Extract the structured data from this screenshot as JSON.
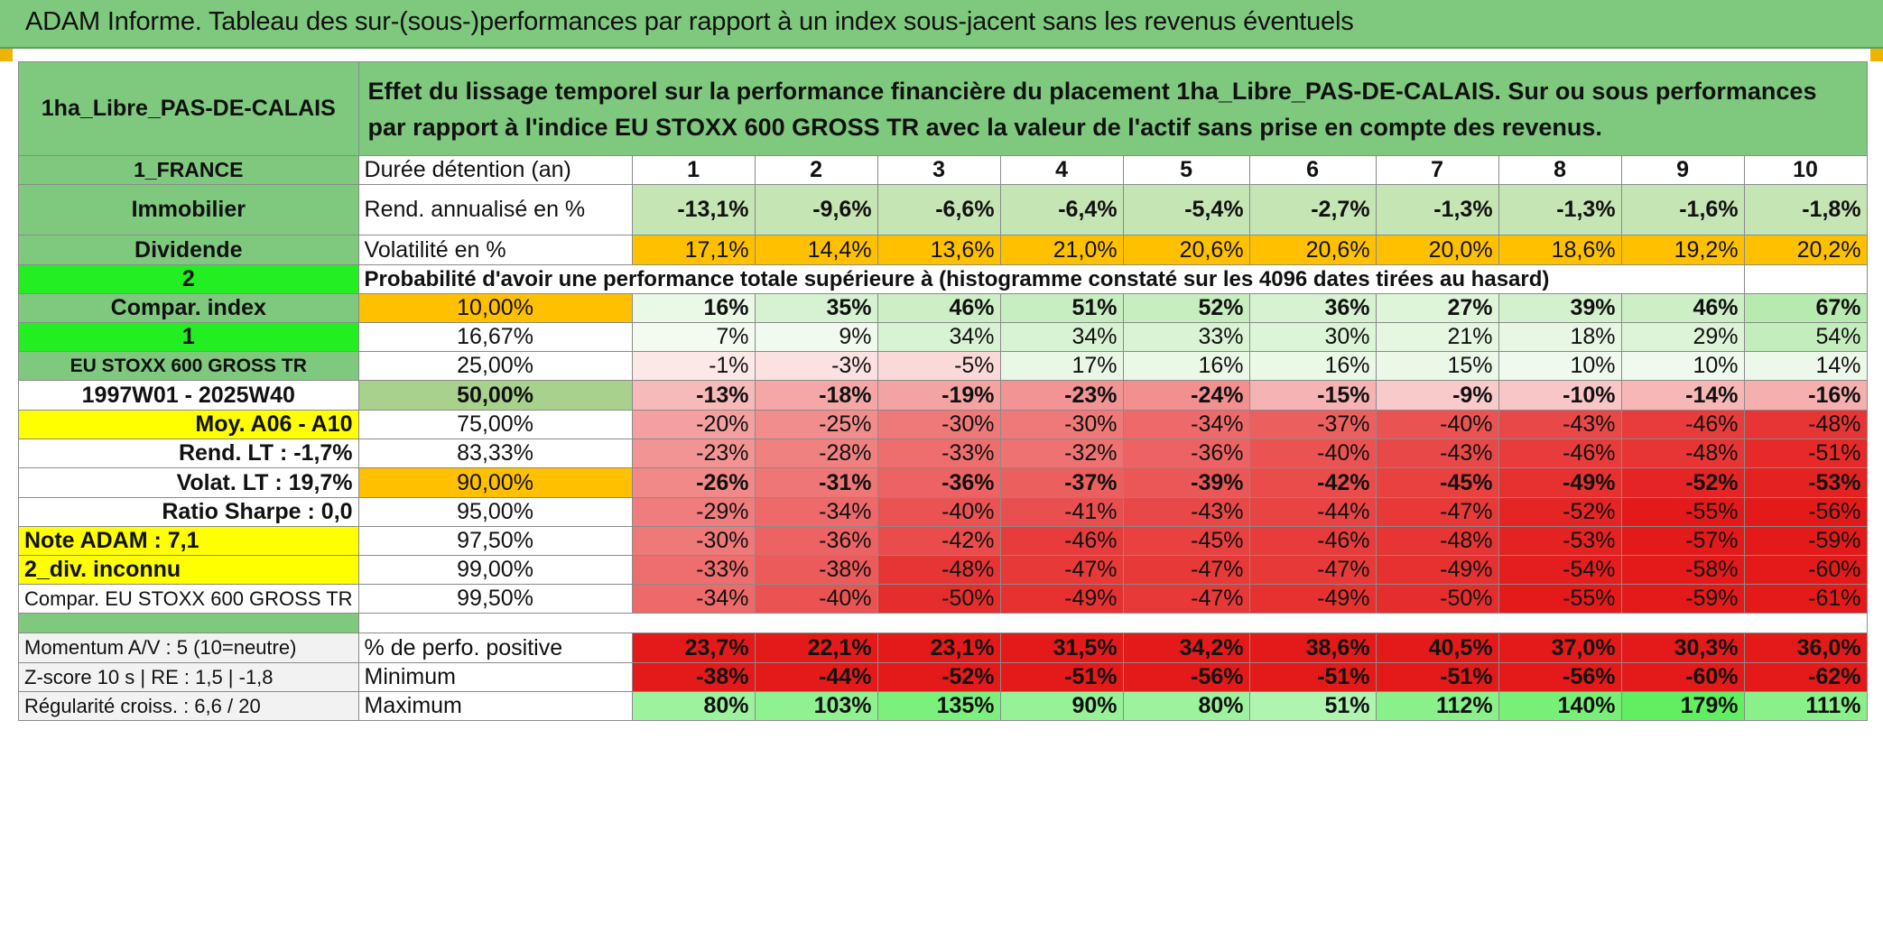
{
  "title": "ADAM Informe. Tableau des sur-(sous-)performances par rapport à un index sous-jacent sans les revenus éventuels",
  "header": {
    "fund_name": "1ha_Libre_PAS-DE-CALAIS",
    "description": "Effet du lissage temporel sur la performance financière du placement 1ha_Libre_PAS-DE-CALAIS. Sur ou sous performances par rapport à l'indice EU STOXX 600 GROSS TR avec la valeur de l'actif sans prise en compte des revenus."
  },
  "left_labels": {
    "country": "1_FRANCE",
    "category": "Immobilier",
    "dividend": "Dividende",
    "input_2": "2",
    "compar_index": "Compar. index",
    "input_1": "1",
    "index_name": "EU STOXX 600 GROSS TR",
    "period": "1997W01 - 2025W40",
    "moy": "Moy. A06 - A10",
    "rend_lt": "Rend. LT :    -1,7%",
    "volat_lt": "Volat. LT :   19,7%",
    "sharpe": "Ratio Sharpe :    0,0",
    "note": "Note ADAM : 7,1",
    "div": "2_div. inconnu",
    "compar_full": "Compar. EU STOXX 600 GROSS TR",
    "momentum": "Momentum A/V : 5 (10=neutre)",
    "zscore": "Z-score 10 s | RE : 1,5 | -1,8",
    "regularite": "Régularité croiss. : 6,6 / 20"
  },
  "row_labels": {
    "duree": "Durée détention (an)",
    "rend": "Rend. annualisé en %",
    "vol": "Volatilité en %",
    "prob": "Probabilité d'avoir une performance totale supérieure à (histogramme constaté sur les 4096 dates tirées au hasard)",
    "pos": "% de perfo. positive",
    "min": "Minimum",
    "max": "Maximum"
  },
  "years": [
    "1",
    "2",
    "3",
    "4",
    "5",
    "6",
    "7",
    "8",
    "9",
    "10"
  ],
  "rend": [
    "-13,1%",
    "-9,6%",
    "-6,6%",
    "-6,4%",
    "-5,4%",
    "-2,7%",
    "-1,3%",
    "-1,3%",
    "-1,6%",
    "-1,8%"
  ],
  "vol": [
    "17,1%",
    "14,4%",
    "13,6%",
    "21,0%",
    "20,6%",
    "20,6%",
    "20,0%",
    "18,6%",
    "19,2%",
    "20,2%"
  ],
  "percentiles": [
    {
      "p": "10,00%",
      "v": [
        "16%",
        "35%",
        "46%",
        "51%",
        "52%",
        "36%",
        "27%",
        "39%",
        "46%",
        "67%"
      ]
    },
    {
      "p": "16,67%",
      "v": [
        "7%",
        "9%",
        "34%",
        "34%",
        "33%",
        "30%",
        "21%",
        "18%",
        "29%",
        "54%"
      ]
    },
    {
      "p": "25,00%",
      "v": [
        "-1%",
        "-3%",
        "-5%",
        "17%",
        "16%",
        "16%",
        "15%",
        "10%",
        "10%",
        "14%"
      ]
    },
    {
      "p": "50,00%",
      "v": [
        "-13%",
        "-18%",
        "-19%",
        "-23%",
        "-24%",
        "-15%",
        "-9%",
        "-10%",
        "-14%",
        "-16%"
      ]
    },
    {
      "p": "75,00%",
      "v": [
        "-20%",
        "-25%",
        "-30%",
        "-30%",
        "-34%",
        "-37%",
        "-40%",
        "-43%",
        "-46%",
        "-48%"
      ]
    },
    {
      "p": "83,33%",
      "v": [
        "-23%",
        "-28%",
        "-33%",
        "-32%",
        "-36%",
        "-40%",
        "-43%",
        "-46%",
        "-48%",
        "-51%"
      ]
    },
    {
      "p": "90,00%",
      "v": [
        "-26%",
        "-31%",
        "-36%",
        "-37%",
        "-39%",
        "-42%",
        "-45%",
        "-49%",
        "-52%",
        "-53%"
      ]
    },
    {
      "p": "95,00%",
      "v": [
        "-29%",
        "-34%",
        "-40%",
        "-41%",
        "-43%",
        "-44%",
        "-47%",
        "-52%",
        "-55%",
        "-56%"
      ]
    },
    {
      "p": "97,50%",
      "v": [
        "-30%",
        "-36%",
        "-42%",
        "-46%",
        "-45%",
        "-46%",
        "-48%",
        "-53%",
        "-57%",
        "-59%"
      ]
    },
    {
      "p": "99,00%",
      "v": [
        "-33%",
        "-38%",
        "-48%",
        "-47%",
        "-47%",
        "-47%",
        "-49%",
        "-54%",
        "-58%",
        "-60%"
      ]
    },
    {
      "p": "99,50%",
      "v": [
        "-34%",
        "-40%",
        "-50%",
        "-49%",
        "-47%",
        "-49%",
        "-50%",
        "-55%",
        "-59%",
        "-61%"
      ]
    }
  ],
  "positive": [
    "23,7%",
    "22,1%",
    "23,1%",
    "31,5%",
    "34,2%",
    "38,6%",
    "40,5%",
    "37,0%",
    "30,3%",
    "36,0%"
  ],
  "minimum": [
    "-38%",
    "-44%",
    "-52%",
    "-51%",
    "-56%",
    "-51%",
    "-51%",
    "-56%",
    "-60%",
    "-62%"
  ],
  "maximum": [
    "80%",
    "103%",
    "135%",
    "90%",
    "80%",
    "51%",
    "112%",
    "140%",
    "179%",
    "111%"
  ],
  "colors": {
    "header_green": "#7fc97f",
    "orange": "#ffc000",
    "yellow": "#ffff00",
    "bright_green": "#22ee22",
    "red": "#e41a1a"
  }
}
